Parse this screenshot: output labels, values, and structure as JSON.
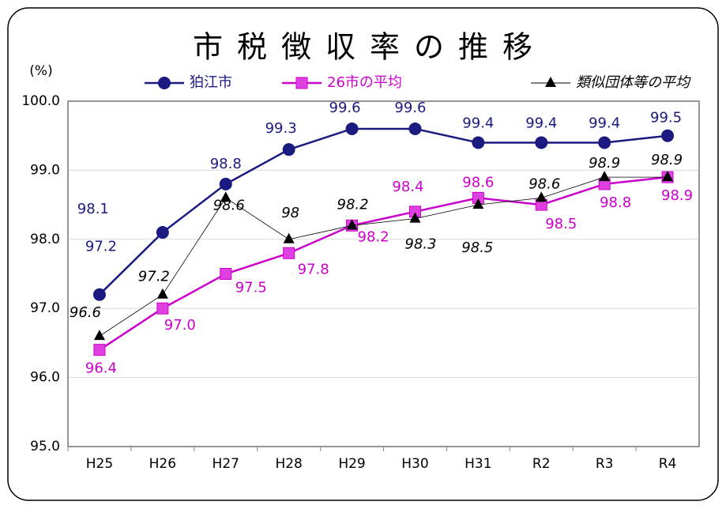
{
  "chart_data": {
    "type": "line",
    "title": "市税徴収率の推移",
    "y_label": "(%)",
    "categories": [
      "H25",
      "H26",
      "H27",
      "H28",
      "H29",
      "H30",
      "H31",
      "R2",
      "R3",
      "R4"
    ],
    "ylim": [
      95,
      100
    ],
    "yticks": [
      {
        "value": 95,
        "label": "95.0"
      },
      {
        "value": 96,
        "label": "96.0"
      },
      {
        "value": 97,
        "label": "97.0"
      },
      {
        "value": 98,
        "label": "98.0"
      },
      {
        "value": 99,
        "label": "99.0"
      },
      {
        "value": 100,
        "label": "100.0"
      }
    ],
    "grid": true,
    "series": [
      {
        "name": "狛江市",
        "color": "#1a1a80",
        "marker": "circle",
        "values": [
          97.2,
          98.1,
          98.8,
          99.3,
          99.6,
          99.6,
          99.4,
          99.4,
          99.4,
          99.5
        ]
      },
      {
        "name": "26市の平均",
        "color": "#cc00cc",
        "marker": "square",
        "values": [
          96.4,
          97.0,
          97.5,
          97.8,
          98.2,
          98.4,
          98.6,
          98.5,
          98.8,
          98.9
        ],
        "value_labels": [
          "96.4",
          "97.0",
          "97.5",
          "97.8",
          "98.2",
          "98.4",
          "98.6",
          "98.5",
          "98.8",
          "98.9"
        ]
      },
      {
        "name": "類似団体等の平均",
        "color": "#000000",
        "marker": "triangle",
        "values": [
          96.6,
          97.2,
          98.6,
          98.0,
          98.2,
          98.3,
          98.5,
          98.6,
          98.9,
          98.9
        ]
      }
    ]
  }
}
